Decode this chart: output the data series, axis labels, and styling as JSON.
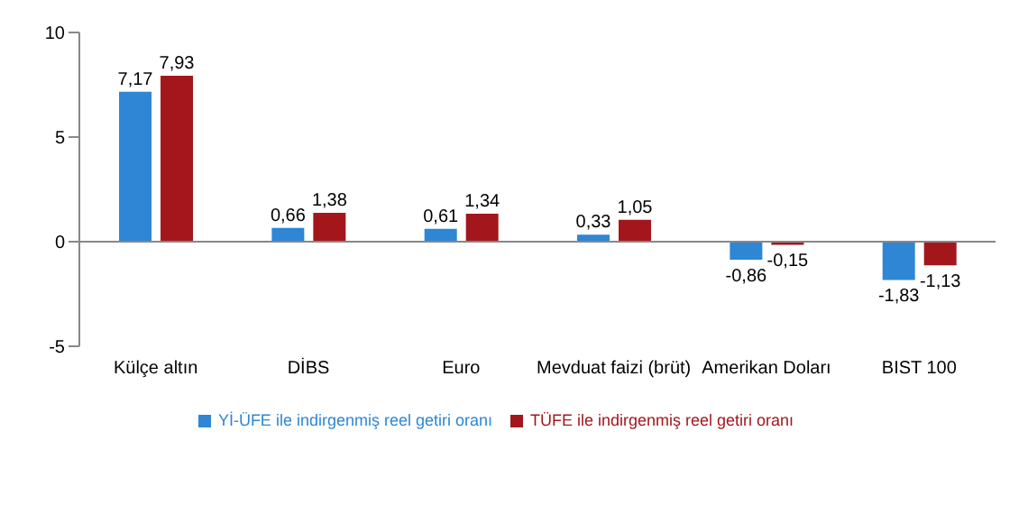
{
  "chart_data": {
    "type": "bar",
    "categories": [
      "Külçe altın",
      "DİBS",
      "Euro",
      "Mevduat faizi (brüt)",
      "Amerikan Doları",
      "BIST 100"
    ],
    "series": [
      {
        "name": "Yİ-ÜFE ile indirgenmiş reel getiri oranı",
        "color": "#2e86d4",
        "values": [
          7.17,
          0.66,
          0.61,
          0.33,
          -0.86,
          -1.83
        ]
      },
      {
        "name": "TÜFE ile indirgenmiş reel getiri oranı",
        "color": "#a3171c",
        "values": [
          7.93,
          1.38,
          1.34,
          1.05,
          -0.15,
          -1.13
        ]
      }
    ],
    "value_labels": [
      [
        "7,17",
        "0,66",
        "0,61",
        "0,33",
        "-0,86",
        "-1,83"
      ],
      [
        "7,93",
        "1,38",
        "1,34",
        "1,05",
        "-0,15",
        "-1,13"
      ]
    ],
    "ylim": [
      -5,
      10
    ],
    "yticks": [
      -5,
      0,
      5,
      10
    ],
    "legend": "bottom"
  }
}
